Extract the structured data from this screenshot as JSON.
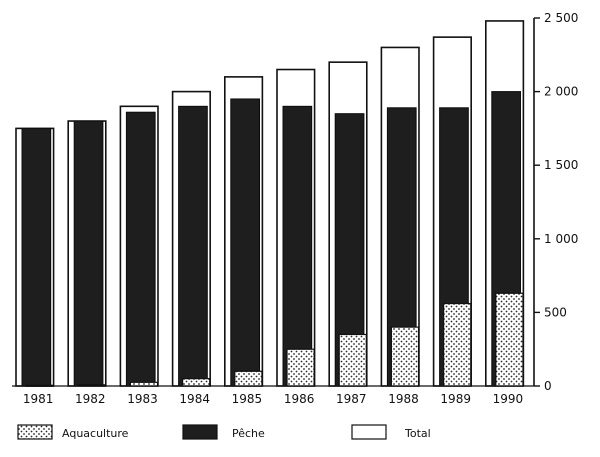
{
  "chart_data": {
    "type": "bar",
    "categories": [
      "1981",
      "1982",
      "1983",
      "1984",
      "1985",
      "1986",
      "1987",
      "1988",
      "1989",
      "1990"
    ],
    "series": [
      {
        "name": "Total",
        "values": [
          1750,
          1800,
          1900,
          2000,
          2100,
          2150,
          2200,
          2300,
          2370,
          2480
        ]
      },
      {
        "name": "Pêche",
        "values": [
          1750,
          1800,
          1860,
          1900,
          1950,
          1900,
          1850,
          1890,
          1890,
          2000
        ]
      },
      {
        "name": "Aquaculture",
        "values": [
          5,
          8,
          25,
          50,
          100,
          250,
          350,
          400,
          560,
          630
        ]
      }
    ],
    "ylim": [
      0,
      2500
    ],
    "yticks": [
      0,
      500,
      1000,
      1500,
      2000,
      2500
    ],
    "ytick_labels": [
      "0",
      "500",
      "1 000",
      "1 500",
      "2 000",
      "2 500"
    ],
    "y_axis_side": "right",
    "grid": false,
    "legend_position": "bottom",
    "colors": {
      "total": "#ffffff",
      "peche": "#1e1e1e",
      "aquaculture_dots": "#2a2a2a",
      "axis": "#111111"
    }
  },
  "legend": {
    "aquaculture": "Aquaculture",
    "peche": "Pêche",
    "total": "Total"
  }
}
